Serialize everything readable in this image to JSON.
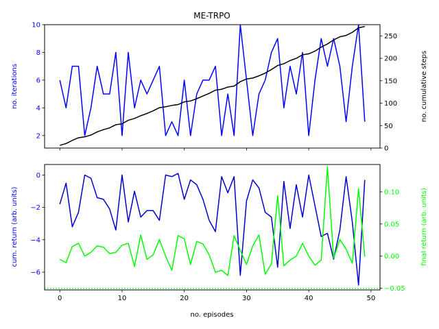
{
  "colors": {
    "iterations": "#0000ff",
    "cumulative_steps": "#000000",
    "cumulative_return": "#0000cc",
    "final_return": "#00ff00",
    "final_return_baseline": "#00ff00"
  },
  "chart_data": [
    {
      "type": "line",
      "title": "ME-TRPO",
      "xlabel": "",
      "ylabel_left": "no. iterations",
      "ylabel_right": "no. cumulative steps",
      "xlim": [
        -2.45,
        51.45
      ],
      "ylim_left": [
        1.1,
        10.0
      ],
      "ylim_right": [
        0,
        275
      ],
      "xticks": [
        0,
        10,
        20,
        30,
        40,
        50
      ],
      "yticks_left": [
        2,
        4,
        6,
        8,
        10
      ],
      "yticks_right": [
        0,
        50,
        100,
        150,
        200,
        250
      ],
      "grid": false,
      "series": [
        {
          "axis": "left",
          "color": "#0000ff",
          "x": [
            0,
            1,
            2,
            3,
            4,
            5,
            6,
            7,
            8,
            9,
            10,
            11,
            12,
            13,
            14,
            15,
            16,
            17,
            18,
            19,
            20,
            21,
            22,
            23,
            24,
            25,
            26,
            27,
            28,
            29,
            30,
            31,
            32,
            33,
            34,
            35,
            36,
            37,
            38,
            39,
            40,
            41,
            42,
            43,
            44,
            45,
            46,
            47,
            48,
            49
          ],
          "values": [
            6,
            4,
            7,
            7,
            2,
            4,
            7,
            5,
            5,
            8,
            2,
            8,
            4,
            6,
            5,
            6,
            7,
            2,
            3,
            2,
            6,
            2,
            5,
            6,
            6,
            7,
            2,
            5,
            2,
            10,
            6,
            2,
            5,
            6,
            8,
            9,
            4,
            7,
            5,
            8,
            2,
            6,
            9,
            7,
            9,
            7,
            3,
            7,
            10,
            3
          ]
        },
        {
          "axis": "right",
          "color": "#000000",
          "x": [
            0,
            1,
            2,
            3,
            4,
            5,
            6,
            7,
            8,
            9,
            10,
            11,
            12,
            13,
            14,
            15,
            16,
            17,
            18,
            19,
            20,
            21,
            22,
            23,
            24,
            25,
            26,
            27,
            28,
            29,
            30,
            31,
            32,
            33,
            34,
            35,
            36,
            37,
            38,
            39,
            40,
            41,
            42,
            43,
            44,
            45,
            46,
            47,
            48,
            49
          ],
          "values": [
            6,
            10,
            17,
            23,
            25,
            29,
            36,
            41,
            45,
            52,
            54,
            62,
            66,
            72,
            77,
            83,
            90,
            92,
            95,
            97,
            103,
            105,
            110,
            116,
            122,
            129,
            131,
            136,
            138,
            148,
            154,
            156,
            161,
            167,
            175,
            184,
            188,
            195,
            200,
            208,
            210,
            216,
            225,
            232,
            241,
            248,
            251,
            258,
            268,
            271
          ]
        }
      ]
    },
    {
      "type": "line",
      "title": "",
      "xlabel": "no. episodes",
      "ylabel_left": "cum. return (arb. units)",
      "ylabel_right": "final return (arb. units)",
      "xlim": [
        -2.45,
        51.45
      ],
      "ylim_left": [
        -7.1,
        0.65
      ],
      "ylim_right": [
        -0.0525,
        0.1425
      ],
      "xticks": [
        0,
        10,
        20,
        30,
        40,
        50
      ],
      "yticks_left": [
        0,
        -2,
        -4,
        -6
      ],
      "yticks_right": [
        0.1,
        0.05,
        0.0,
        -0.05
      ],
      "grid": false,
      "series": [
        {
          "axis": "left",
          "color": "#0000cc",
          "x": [
            0,
            1,
            2,
            3,
            4,
            5,
            6,
            7,
            8,
            9,
            10,
            11,
            12,
            13,
            14,
            15,
            16,
            17,
            18,
            19,
            20,
            21,
            22,
            23,
            24,
            25,
            26,
            27,
            28,
            29,
            30,
            31,
            32,
            33,
            34,
            35,
            36,
            37,
            38,
            39,
            40,
            41,
            42,
            43,
            44,
            45,
            46,
            47,
            48,
            49
          ],
          "values": [
            -1.8,
            -0.5,
            -3.2,
            -2.3,
            0.0,
            -0.2,
            -1.4,
            -1.5,
            -2.1,
            -3.4,
            0.0,
            -2.9,
            -1.0,
            -2.6,
            -2.2,
            -2.2,
            -2.8,
            0.0,
            -0.1,
            0.1,
            -1.5,
            -0.3,
            -0.6,
            -1.5,
            -2.8,
            -3.5,
            -0.1,
            -1.1,
            -0.1,
            -6.2,
            -1.6,
            -0.3,
            -0.8,
            -2.3,
            -2.6,
            -5.7,
            -0.4,
            -3.3,
            -0.6,
            -2.6,
            0.0,
            -1.9,
            -3.8,
            -3.6,
            -5.2,
            -3.4,
            -0.1,
            -2.9,
            -6.8,
            -0.3
          ]
        },
        {
          "axis": "right",
          "color": "#00ff00",
          "x": [
            0,
            1,
            2,
            3,
            4,
            5,
            6,
            7,
            8,
            9,
            10,
            11,
            12,
            13,
            14,
            15,
            16,
            17,
            18,
            19,
            20,
            21,
            22,
            23,
            24,
            25,
            26,
            27,
            28,
            29,
            30,
            31,
            32,
            33,
            34,
            35,
            36,
            37,
            38,
            39,
            40,
            41,
            42,
            43,
            44,
            45,
            46,
            47,
            48,
            49
          ],
          "values": [
            -0.005,
            -0.01,
            0.015,
            0.02,
            0.0,
            0.006,
            0.016,
            0.014,
            0.004,
            0.006,
            0.017,
            0.02,
            -0.016,
            0.0329,
            -0.005,
            0.002,
            0.026,
            0.0,
            -0.022,
            0.032,
            0.027,
            -0.013,
            0.023,
            0.019,
            0.002,
            -0.025,
            -0.022,
            -0.03,
            0.032,
            0.009,
            -0.013,
            0.016,
            0.033,
            -0.028,
            -0.012,
            0.094,
            -0.015,
            -0.006,
            0.0,
            0.02,
            0.0,
            -0.014,
            -0.006,
            0.139,
            -0.003,
            0.026,
            0.011,
            -0.011,
            0.105,
            -0.001
          ]
        }
      ],
      "baseline": {
        "axis": "right",
        "color": "#00ff00",
        "value": -0.05,
        "style": "dotted"
      }
    }
  ]
}
